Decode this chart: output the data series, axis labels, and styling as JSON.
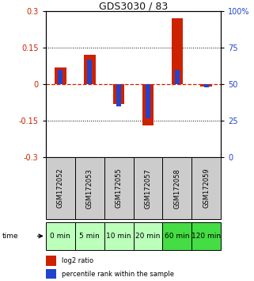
{
  "title": "GDS3030 / 83",
  "samples": [
    "GSM172052",
    "GSM172053",
    "GSM172055",
    "GSM172057",
    "GSM172058",
    "GSM172059"
  ],
  "time_labels": [
    "0 min",
    "5 min",
    "10 min",
    "20 min",
    "60 min",
    "120 min"
  ],
  "log2_ratio": [
    0.07,
    0.12,
    -0.08,
    -0.17,
    0.27,
    -0.01
  ],
  "percentile": [
    60,
    67,
    35,
    27,
    60,
    48
  ],
  "ylim_left": [
    -0.3,
    0.3
  ],
  "ylim_right": [
    0,
    100
  ],
  "left_ticks": [
    -0.3,
    -0.15,
    0,
    0.15,
    0.3
  ],
  "right_ticks": [
    0,
    25,
    50,
    75,
    100
  ],
  "left_tick_labels": [
    "-0.3",
    "-0.15",
    "0",
    "0.15",
    "0.3"
  ],
  "right_tick_labels": [
    "0",
    "25",
    "50",
    "75",
    "100%"
  ],
  "bar_color_red": "#cc2200",
  "bar_color_blue": "#2244cc",
  "hline_zero_color": "#cc2200",
  "hline_dotted_color": "#000000",
  "sample_box_color": "#cccccc",
  "time_box_colors": [
    "#bbffbb",
    "#bbffbb",
    "#bbffbb",
    "#bbffbb",
    "#44dd44",
    "#44dd44"
  ],
  "bg_color": "#ffffff",
  "red_bar_width": 0.4,
  "blue_bar_width": 0.15,
  "legend_label_red": "log2 ratio",
  "legend_label_blue": "percentile rank within the sample",
  "title_fontsize": 9,
  "tick_fontsize": 7,
  "sample_fontsize": 6,
  "time_fontsize": 6.5,
  "legend_fontsize": 6
}
